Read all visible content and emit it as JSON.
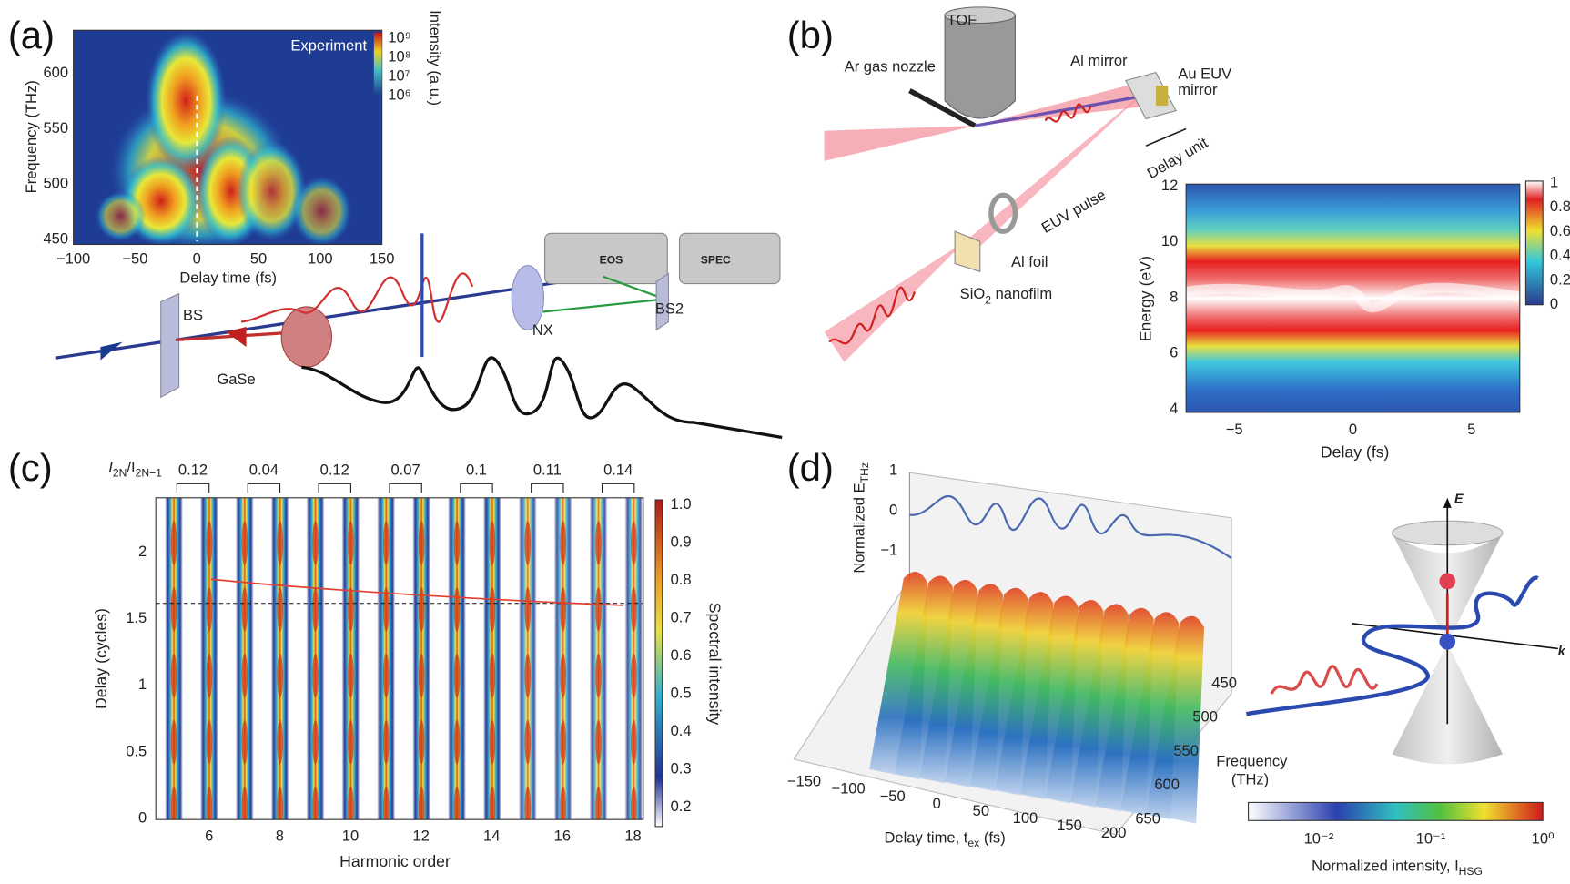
{
  "panel_a": {
    "label": "(a)",
    "heatmap_title": "Experiment",
    "colorbar_title": "Intensity (a.u.)",
    "colorbar_ticks": [
      "10⁹",
      "10⁸",
      "10⁷",
      "10⁶"
    ],
    "x_label": "Delay time (fs)",
    "x_ticks": [
      "−100",
      "−50",
      "0",
      "50",
      "100",
      "150"
    ],
    "y_label": "Frequency (THz)",
    "y_ticks": [
      "600",
      "550",
      "500",
      "450"
    ],
    "components": [
      "BS",
      "GaSe",
      "NX",
      "EOS",
      "SPEC",
      "BS2"
    ]
  },
  "panel_b": {
    "label": "(b)",
    "components": [
      "TOF",
      "Ar gas nozzle",
      "Al mirror",
      "Delay unit",
      "EUV pulse",
      "Al foil"
    ],
    "euv_mirror": [
      "Au EUV",
      "mirror"
    ],
    "nanofilm": {
      "base": "SiO",
      "sub": "2",
      "rest": " nanofilm"
    },
    "y_label": "Energy (eV)",
    "y_ticks": [
      "12",
      "10",
      "8",
      "6",
      "4"
    ],
    "x_label": "Delay (fs)",
    "x_ticks": [
      "−5",
      "0",
      "5"
    ],
    "colorbar_ticks": [
      "1",
      "0.8",
      "0.6",
      "0.4",
      "0.2",
      "0"
    ]
  },
  "panel_c": {
    "label": "(c)",
    "ratio_label": {
      "a": "I",
      "a_sub": "2N",
      "b": "/I",
      "b_sub": "2N−1"
    },
    "ratios": [
      "0.12",
      "0.04",
      "0.12",
      "0.07",
      "0.1",
      "0.11",
      "0.14"
    ],
    "y_label": "Delay (cycles)",
    "y_ticks": [
      "2",
      "1.5",
      "1",
      "0.5",
      "0"
    ],
    "x_label": "Harmonic order",
    "x_ticks": [
      "6",
      "8",
      "10",
      "12",
      "14",
      "16",
      "18"
    ],
    "colorbar_label": "Spectral intensity",
    "colorbar_ticks": [
      "1.0",
      "0.9",
      "0.8",
      "0.7",
      "0.6",
      "0.5",
      "0.4",
      "0.3",
      "0.2"
    ]
  },
  "panel_d": {
    "label": "(d)",
    "y_label": {
      "text": "Normalized E",
      "sub": "THz"
    },
    "y_ticks": [
      "1",
      "0",
      "−1"
    ],
    "x_label": {
      "text": "Delay time, t",
      "sub": "ex",
      "rest": " (fs)"
    },
    "x_ticks": [
      "−150",
      "−100",
      "−50",
      "0",
      "50",
      "100",
      "150",
      "200"
    ],
    "freq_label": [
      "Frequency",
      "(THz)"
    ],
    "freq_ticks": [
      "450",
      "500",
      "550",
      "600",
      "650"
    ],
    "axis_e": "E",
    "axis_k": "k",
    "colorbar_ticks": [
      "10⁻²",
      "10⁻¹",
      "10⁰"
    ],
    "colorbar_label": {
      "text": "Normalized intensity, I",
      "sub": "HSG"
    }
  }
}
